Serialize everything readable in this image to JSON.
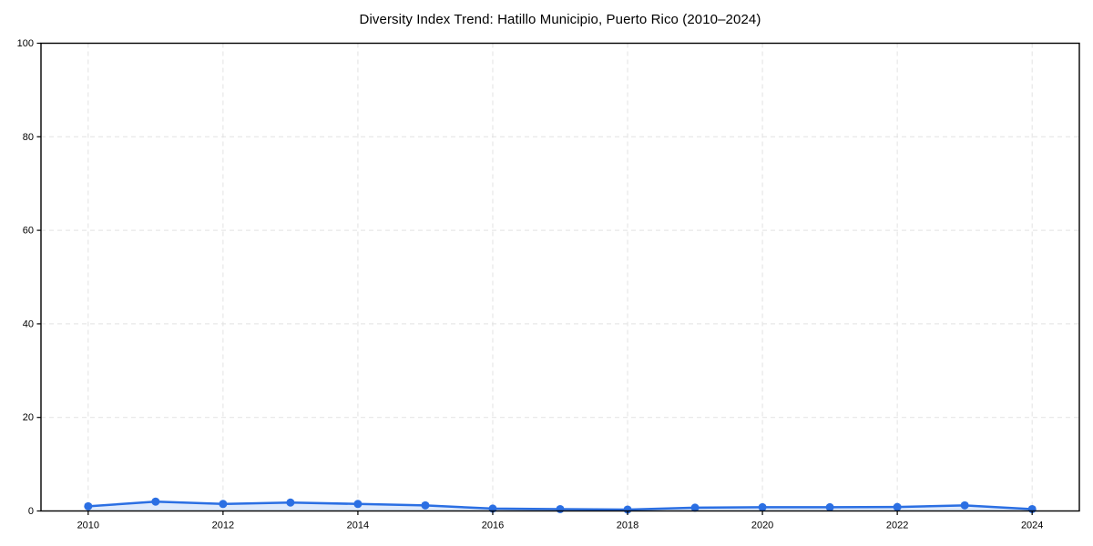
{
  "page": {
    "background": "#ffffff"
  },
  "chart_data": {
    "type": "line",
    "title": "Diversity Index Trend: Hatillo Municipio, Puerto Rico (2010–2024)",
    "xlabel": "",
    "ylabel": "",
    "x": [
      2010,
      2011,
      2012,
      2013,
      2014,
      2015,
      2016,
      2017,
      2018,
      2019,
      2020,
      2021,
      2022,
      2023,
      2024
    ],
    "series": [
      {
        "name": "Diversity Index",
        "values": [
          1.0,
          2.0,
          1.5,
          1.8,
          1.5,
          1.2,
          0.5,
          0.4,
          0.3,
          0.7,
          0.8,
          0.8,
          0.85,
          1.2,
          0.4
        ]
      }
    ],
    "xlim": [
      2009.3,
      2024.7
    ],
    "ylim": [
      0,
      100
    ],
    "xticks": [
      2010,
      2012,
      2014,
      2016,
      2018,
      2020,
      2022,
      2024
    ],
    "yticks": [
      0,
      20,
      40,
      60,
      80,
      100
    ],
    "grid": "dashed",
    "legend_position": "none",
    "marker": "circle",
    "colors": {
      "line": "#2b6fe3",
      "marker": "#2b6fe3",
      "area_fill": "rgba(43,111,227,0.15)",
      "grid": "#e2e2e2",
      "axis": "#000000",
      "text": "#000000"
    }
  }
}
